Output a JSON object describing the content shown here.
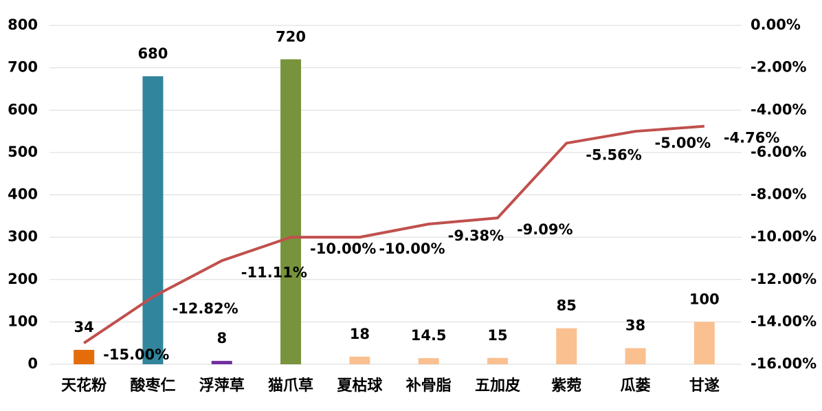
{
  "chart_data": {
    "type": "bar",
    "categories": [
      "天花粉",
      "酸枣仁",
      "浮萍草",
      "猫爪草",
      "夏枯球",
      "补骨脂",
      "五加皮",
      "紫菀",
      "瓜蒌",
      "甘遂"
    ],
    "series": [
      {
        "type": "bar",
        "colors": [
          "#e46c0a",
          "#31859c",
          "#7030a0",
          "#77933c",
          "#fac090",
          "#fac090",
          "#fac090",
          "#fac090",
          "#fac090",
          "#fac090"
        ],
        "values": [
          34,
          680,
          8,
          720,
          18,
          14.5,
          15,
          85,
          38,
          100
        ]
      },
      {
        "type": "line",
        "axis": "y2",
        "color": "#c0504d",
        "values": [
          -15,
          -12.82,
          -11.11,
          -10,
          -10,
          -9.38,
          -9.09,
          -5.56,
          -5,
          -4.76
        ],
        "value_labels": [
          "-15.00%",
          "-12.82%",
          "-11.11%",
          "-10.00%",
          "-10.00%",
          "-9.38%",
          "-9.09%",
          "-5.56%",
          "-5.00%",
          "-4.76%"
        ]
      }
    ],
    "ylim": [
      0,
      800
    ],
    "yticks": [
      0,
      100,
      200,
      300,
      400,
      500,
      600,
      700,
      800
    ],
    "y2lim": [
      -16,
      0
    ],
    "y2ticks": [
      {
        "value": -16,
        "label": "-16.00%"
      },
      {
        "value": -14,
        "label": "-14.00%"
      },
      {
        "value": -12,
        "label": "-12.00%"
      },
      {
        "value": -10,
        "label": "-10.00%"
      },
      {
        "value": -8,
        "label": "-8.00%"
      },
      {
        "value": -6,
        "label": "-6.00%"
      },
      {
        "value": -4,
        "label": "-4.00%"
      },
      {
        "value": -2,
        "label": "-2.00%"
      },
      {
        "value": 0,
        "label": "0.00%"
      }
    ],
    "grid": true
  }
}
